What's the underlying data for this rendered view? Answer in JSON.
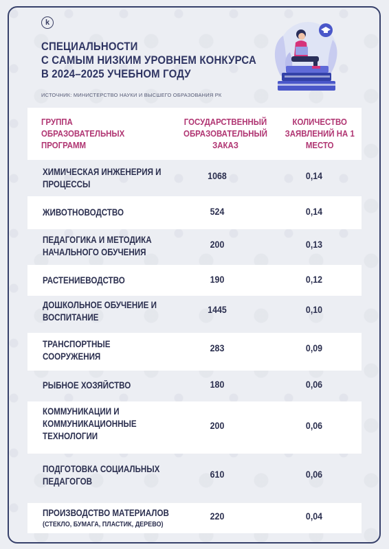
{
  "logo": "k",
  "title_lines": [
    "СПЕЦИАЛЬНОСТИ",
    "С САМЫМ НИЗКИМ УРОВНЕМ КОНКУРСА",
    "В 2024–2025 УЧЕБНОМ ГОДУ"
  ],
  "source": "ИСТОЧНИК: МИНИСТЕРСТВО НАУКИ И ВЫСШЕГО ОБРАЗОВАНИЯ РК",
  "table": {
    "headers": [
      "ГРУППА ОБРАЗОВАТЕЛЬНЫХ ПРОГРАММ",
      "ГОСУДАРСТВЕННЫЙ ОБРАЗОВАТЕЛЬНЫЙ ЗАКАЗ",
      "КОЛИЧЕСТВО ЗАЯВЛЕНИЙ НА 1 МЕСТО"
    ],
    "rows": [
      {
        "name": "ХИМИЧЕСКАЯ ИНЖЕНЕРИЯ И ПРОЦЕССЫ",
        "sub": "",
        "order": "1068",
        "ratio": "0,14"
      },
      {
        "name": "ЖИВОТНОВОДСТВО",
        "sub": "",
        "order": "524",
        "ratio": "0,14"
      },
      {
        "name": "ПЕДАГОГИКА И МЕТОДИКА НАЧАЛЬНОГО ОБУЧЕНИЯ",
        "sub": "",
        "order": "200",
        "ratio": "0,13"
      },
      {
        "name": "РАСТЕНИЕВОДСТВО",
        "sub": "",
        "order": "190",
        "ratio": "0,12"
      },
      {
        "name": "ДОШКОЛЬНОЕ ОБУЧЕНИЕ И ВОСПИТАНИЕ",
        "sub": "",
        "order": "1445",
        "ratio": "0,10"
      },
      {
        "name": "ТРАНСПОРТНЫЕ СООРУЖЕНИЯ",
        "sub": "",
        "order": "283",
        "ratio": "0,09"
      },
      {
        "name": "РЫБНОЕ ХОЗЯЙСТВО",
        "sub": "",
        "order": "180",
        "ratio": "0,06"
      },
      {
        "name": "КОММУНИКАЦИИ И КОММУНИКАЦИОННЫЕ ТЕХНОЛОГИИ",
        "sub": "",
        "order": "200",
        "ratio": "0,06"
      },
      {
        "name": "ПОДГОТОВКА СОЦИАЛЬНЫХ ПЕДАГОГОВ",
        "sub": "",
        "order": "610",
        "ratio": "0,06"
      },
      {
        "name": "ПРОИЗВОДСТВО МАТЕРИАЛОВ",
        "sub": "(СТЕКЛО, БУМАГА, ПЛАСТИК, ДЕРЕВО)",
        "order": "220",
        "ratio": "0,04"
      }
    ]
  },
  "colors": {
    "title": "#2f3563",
    "header": "#b03572",
    "border": "#36406a",
    "row_shade": "#ffffff"
  }
}
